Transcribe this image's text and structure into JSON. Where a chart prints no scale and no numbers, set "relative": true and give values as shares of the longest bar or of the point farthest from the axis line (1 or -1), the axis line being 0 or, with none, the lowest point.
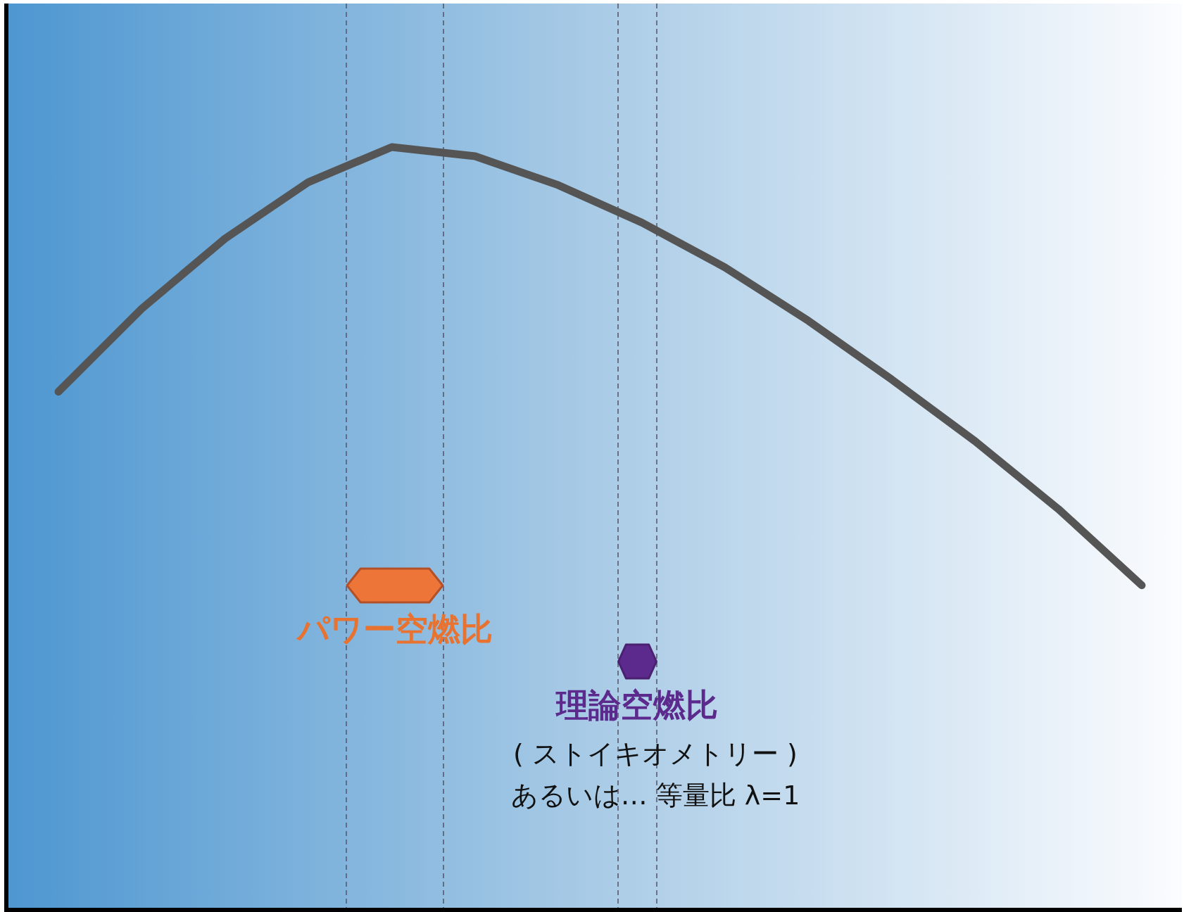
{
  "chart_data": {
    "type": "line",
    "relative": true,
    "categories": [
      null,
      null,
      null,
      null,
      null,
      null,
      null,
      null,
      null,
      null,
      null,
      null,
      null,
      null
    ],
    "series": [
      {
        "color": "#555555",
        "values": [
          0.679,
          0.788,
          0.88,
          0.954,
          1.0,
          0.988,
          0.95,
          0.901,
          0.842,
          0.772,
          0.695,
          0.614,
          0.525,
          0.425
        ]
      }
    ],
    "annotations": [
      "パワー空燃比",
      "理論空燃比",
      "( ストイキオメトリー )",
      "あるいは… 等量比 λ=1"
    ]
  }
}
